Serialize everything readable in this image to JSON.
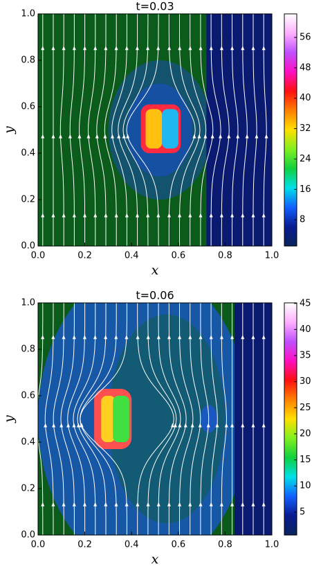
{
  "chart_data": [
    {
      "type": "heatmap",
      "title": "t=0.03",
      "x_label": "x",
      "y_label": "y",
      "xlim": [
        0,
        1
      ],
      "ylim": [
        0,
        1
      ],
      "xticks": [
        {
          "value": 0,
          "label": "0.0"
        },
        {
          "value": 0.2,
          "label": "0.2"
        },
        {
          "value": 0.4,
          "label": "0.4"
        },
        {
          "value": 0.6,
          "label": "0.6"
        },
        {
          "value": 0.8,
          "label": "0.8"
        },
        {
          "value": 1,
          "label": "1.0"
        }
      ],
      "yticks": [
        {
          "value": 0,
          "label": "0.0"
        },
        {
          "value": 0.2,
          "label": "0.2"
        },
        {
          "value": 0.4,
          "label": "0.4"
        },
        {
          "value": 0.6,
          "label": "0.6"
        },
        {
          "value": 0.8,
          "label": "0.8"
        },
        {
          "value": 1,
          "label": "1.0"
        }
      ],
      "clim": [
        1.1,
        62.2
      ],
      "cticks": [
        8,
        16,
        24,
        32,
        40,
        48,
        56
      ],
      "colormap": [
        "#08245a",
        "#0a1a90",
        "#1060ff",
        "#00e0e8",
        "#10d040",
        "#80f020",
        "#ffe000",
        "#ff8000",
        "#ff1010",
        "#ff10c0",
        "#c050ff",
        "#ffb0ff",
        "#ffffff"
      ]
    },
    {
      "type": "heatmap",
      "title": "t=0.06",
      "x_label": "x",
      "y_label": "y",
      "xlim": [
        0,
        1
      ],
      "ylim": [
        0,
        1
      ],
      "xticks": [
        {
          "value": 0,
          "label": "0.0"
        },
        {
          "value": 0.2,
          "label": "0.2"
        },
        {
          "value": 0.4,
          "label": "0.4"
        },
        {
          "value": 0.6,
          "label": "0.6"
        },
        {
          "value": 0.8,
          "label": "0.8"
        },
        {
          "value": 1,
          "label": "1.0"
        }
      ],
      "yticks": [
        {
          "value": 0,
          "label": "0.0"
        },
        {
          "value": 0.2,
          "label": "0.2"
        },
        {
          "value": 0.4,
          "label": "0.4"
        },
        {
          "value": 0.6,
          "label": "0.6"
        },
        {
          "value": 0.8,
          "label": "0.8"
        },
        {
          "value": 1,
          "label": "1.0"
        }
      ],
      "clim": [
        0.6,
        45.1
      ],
      "cticks": [
        5,
        10,
        15,
        20,
        25,
        30,
        35,
        40,
        45
      ],
      "colormap": [
        "#08245a",
        "#0a1a90",
        "#1060ff",
        "#00e0e8",
        "#10d040",
        "#80f020",
        "#ffe000",
        "#ff8000",
        "#ff1010",
        "#ff10c0",
        "#c050ff",
        "#ffb0ff",
        "#ffffff"
      ]
    }
  ]
}
